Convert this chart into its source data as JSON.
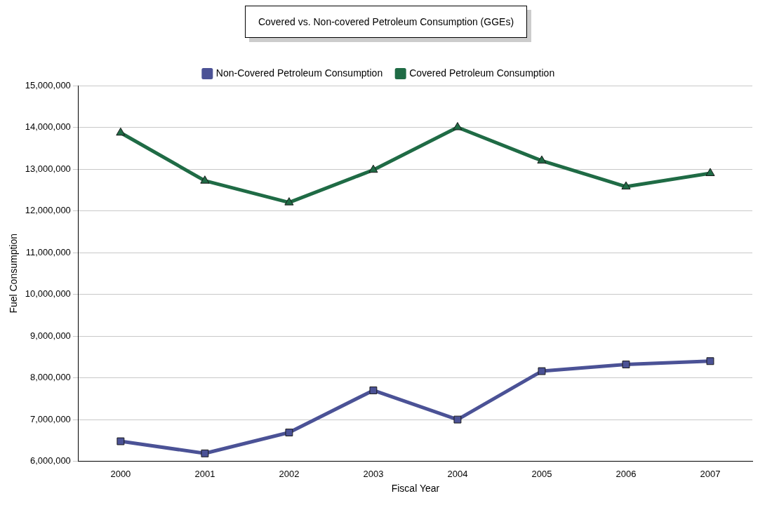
{
  "chart_data": {
    "type": "line",
    "title": "Covered vs. Non-covered Petroleum Consumption (GGEs)",
    "xlabel": "Fiscal Year",
    "ylabel": "Fuel Consumption",
    "categories": [
      "2000",
      "2001",
      "2002",
      "2003",
      "2004",
      "2005",
      "2006",
      "2007"
    ],
    "series": [
      {
        "name": "Non-Covered Petroleum Consumption",
        "color": "#4b5296",
        "marker": "square",
        "values": [
          6480000,
          6190000,
          6690000,
          7700000,
          7000000,
          8160000,
          8320000,
          8400000
        ]
      },
      {
        "name": "Covered Petroleum Consumption",
        "color": "#1f6b45",
        "marker": "triangle",
        "values": [
          13870000,
          12720000,
          12200000,
          12980000,
          14000000,
          13200000,
          12580000,
          12900000
        ]
      }
    ],
    "ylim": [
      6000000,
      15000000
    ],
    "yticks": [
      {
        "value": 6000000,
        "label": "6,000,000"
      },
      {
        "value": 7000000,
        "label": "7,000,000"
      },
      {
        "value": 8000000,
        "label": "8,000,000"
      },
      {
        "value": 9000000,
        "label": "9,000,000"
      },
      {
        "value": 10000000,
        "label": "10,000,000"
      },
      {
        "value": 11000000,
        "label": "11,000,000"
      },
      {
        "value": 12000000,
        "label": "12,000,000"
      },
      {
        "value": 13000000,
        "label": "13,000,000"
      },
      {
        "value": 14000000,
        "label": "14,000,000"
      },
      {
        "value": 15000000,
        "label": "15,000,000"
      }
    ],
    "grid": "y",
    "legend": "top",
    "line_style": "solid"
  }
}
